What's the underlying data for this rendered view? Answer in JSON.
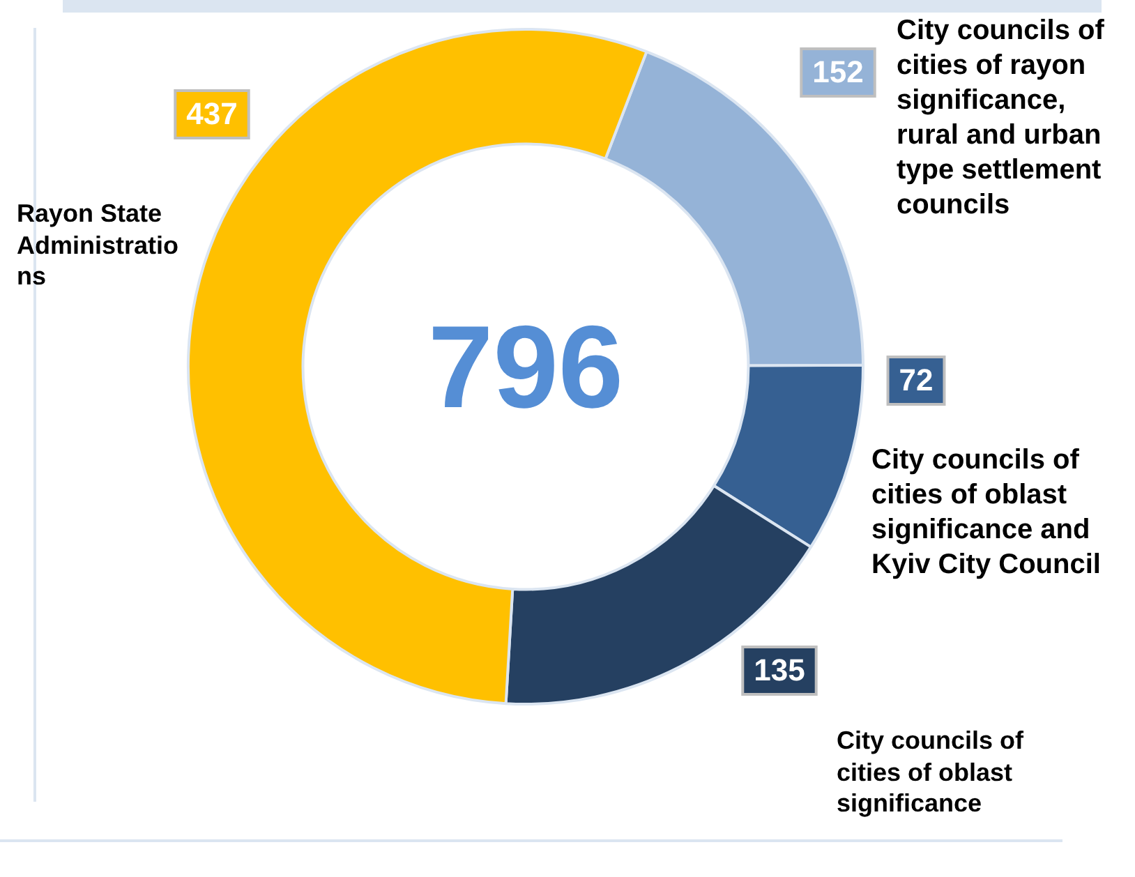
{
  "chart_data": {
    "type": "donut",
    "categories": [
      "City councils of cities of rayon significance, rural and urban type settlement councils",
      "City councils of cities of oblast significance and Kyiv City Council",
      "City councils of cities of oblast significance",
      "Rayon State Administrations"
    ],
    "values": [
      152,
      72,
      135,
      437
    ],
    "colors": [
      "#95b3d7",
      "#366092",
      "#254061",
      "#ffc000"
    ],
    "annotations": [
      "796"
    ],
    "data_labels": true,
    "legend": false
  }
}
